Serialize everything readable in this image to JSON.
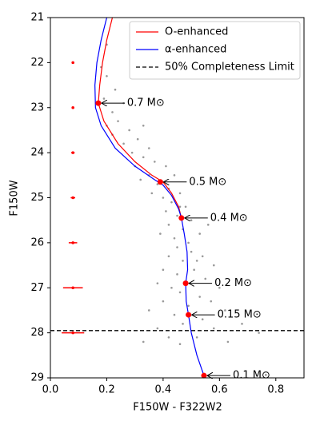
{
  "chart_data": {
    "type": "scatter",
    "xlabel": "F150W - F322W2",
    "ylabel": "F150W",
    "xlim": [
      0,
      0.9
    ],
    "ylim": [
      29,
      21
    ],
    "xticks": [
      {
        "value": 0,
        "label": "0.0"
      },
      0.2,
      0.4,
      0.6,
      0.8
    ],
    "yticks": [
      21,
      22,
      23,
      24,
      25,
      26,
      27,
      28,
      29
    ],
    "legend": "upper right",
    "points": {
      "color": "#999999",
      "x": [
        0.2,
        0.18,
        0.2,
        0.23,
        0.19,
        0.26,
        0.22,
        0.24,
        0.28,
        0.22,
        0.31,
        0.26,
        0.35,
        0.29,
        0.2,
        0.33,
        0.33,
        0.37,
        0.3,
        0.41,
        0.35,
        0.44,
        0.38,
        0.42,
        0.36,
        0.46,
        0.4,
        0.32,
        0.43,
        0.48,
        0.41,
        0.45,
        0.5,
        0.42,
        0.47,
        0.53,
        0.44,
        0.49,
        0.39,
        0.56,
        0.46,
        0.45,
        0.5,
        0.42,
        0.54,
        0.47,
        0.58,
        0.4,
        0.51,
        0.45,
        0.55,
        0.48,
        0.38,
        0.6,
        0.43,
        0.52,
        0.46,
        0.53,
        0.4,
        0.57,
        0.49,
        0.35,
        0.62,
        0.44,
        0.54,
        0.47,
        0.68,
        0.38,
        0.58,
        0.42,
        0.52,
        0.63,
        0.46,
        0.74,
        0.33
      ],
      "y": [
        21.6,
        22.1,
        22.3,
        22.6,
        22.8,
        22.9,
        23.1,
        23.3,
        23.5,
        23.6,
        23.7,
        23.8,
        23.9,
        24.0,
        23.4,
        23.4,
        24.1,
        24.2,
        24.3,
        24.3,
        24.5,
        24.5,
        24.7,
        24.8,
        24.9,
        24.9,
        25.0,
        24.6,
        25.1,
        25.2,
        25.3,
        25.4,
        25.5,
        25.6,
        25.7,
        25.8,
        25.9,
        26.0,
        25.8,
        25.6,
        25.2,
        26.1,
        26.2,
        26.3,
        26.3,
        26.4,
        26.5,
        26.6,
        26.6,
        26.7,
        26.8,
        26.9,
        26.9,
        27.0,
        27.0,
        26.4,
        27.1,
        27.2,
        27.3,
        27.3,
        27.4,
        27.5,
        27.5,
        27.6,
        27.7,
        27.8,
        27.8,
        27.9,
        27.9,
        28.1,
        28.1,
        28.2,
        28.25,
        28.0,
        28.2
      ]
    },
    "series": [
      {
        "name": "O-enhanced",
        "color": "#ff0000",
        "x": [
          0.22,
          0.2,
          0.185,
          0.175,
          0.17,
          0.19,
          0.24,
          0.3,
          0.36,
          0.4,
          0.43,
          0.455,
          0.465
        ],
        "y": [
          21.0,
          21.5,
          22.0,
          22.5,
          22.9,
          23.3,
          23.8,
          24.2,
          24.5,
          24.65,
          24.9,
          25.2,
          25.45
        ]
      },
      {
        "name": "α-enhanced",
        "color": "#0000ff",
        "x": [
          0.2,
          0.18,
          0.165,
          0.158,
          0.16,
          0.18,
          0.23,
          0.3,
          0.37,
          0.4,
          0.43,
          0.455,
          0.465,
          0.475,
          0.485,
          0.487,
          0.48,
          0.482,
          0.49,
          0.5,
          0.52,
          0.545,
          0.55
        ],
        "y": [
          21.0,
          21.5,
          22.0,
          22.5,
          23.0,
          23.4,
          23.9,
          24.3,
          24.6,
          24.72,
          24.95,
          25.25,
          25.45,
          25.8,
          26.2,
          26.6,
          26.9,
          27.3,
          27.6,
          28.0,
          28.5,
          28.95,
          29.0
        ]
      }
    ],
    "completeness": {
      "name": "50% Completeness Limit",
      "color": "#000000",
      "y": 27.95
    },
    "error_bars": {
      "color": "#ff0000",
      "x": [
        0.08,
        0.08,
        0.08,
        0.08,
        0.08,
        0.08,
        0.08
      ],
      "y": [
        22,
        23,
        24,
        25,
        26,
        27,
        28
      ],
      "xerr": [
        0.003,
        0.004,
        0.006,
        0.008,
        0.015,
        0.035,
        0.04
      ]
    },
    "mass_labels": {
      "color": "#ff0000",
      "x": [
        0.17,
        0.39,
        0.465,
        0.48,
        0.49,
        0.545
      ],
      "y": [
        22.9,
        24.65,
        25.45,
        26.9,
        27.6,
        28.95
      ],
      "labels": [
        "0.7 M⊙",
        "0.5 M⊙",
        "0.4 M⊙",
        "0.2 M⊙",
        "0.15 M⊙",
        "0.1 M⊙"
      ]
    }
  }
}
